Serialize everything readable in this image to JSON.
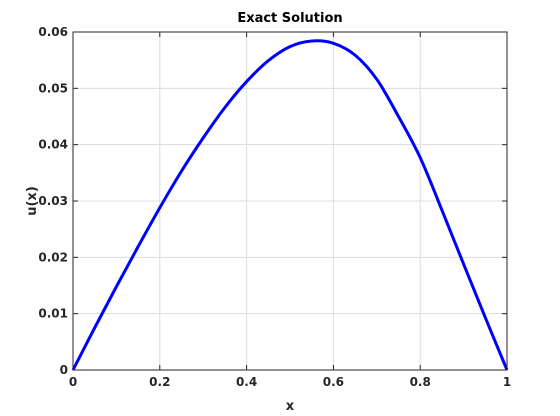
{
  "chart_data": {
    "type": "line",
    "title": "Exact Solution",
    "xlabel": "x",
    "ylabel": "u(x)",
    "xlim": [
      0,
      1
    ],
    "ylim": [
      0,
      0.06
    ],
    "xticks": [
      0,
      0.2,
      0.4,
      0.6,
      0.8,
      1
    ],
    "xtick_labels": [
      "0",
      "0.2",
      "0.4",
      "0.6",
      "0.8",
      "1"
    ],
    "yticks": [
      0,
      0.01,
      0.02,
      0.03,
      0.04,
      0.05,
      0.06
    ],
    "ytick_labels": [
      "0",
      "0.01",
      "0.02",
      "0.03",
      "0.04",
      "0.05",
      "0.06"
    ],
    "grid": true,
    "series": [
      {
        "color": "#0000ff",
        "x": [
          0,
          0.05,
          0.1,
          0.15,
          0.2,
          0.25,
          0.3,
          0.35,
          0.4,
          0.45,
          0.5,
          0.55,
          0.6,
          0.65,
          0.7,
          0.75,
          0.8,
          0.85,
          0.9,
          0.95,
          1
        ],
        "y": [
          0,
          0.0075,
          0.0148,
          0.0219,
          0.0288,
          0.0353,
          0.0412,
          0.0466,
          0.0512,
          0.0549,
          0.0574,
          0.0584,
          0.058,
          0.0559,
          0.0516,
          0.045,
          0.0377,
          0.0284,
          0.0188,
          0.0093,
          0
        ]
      }
    ]
  }
}
